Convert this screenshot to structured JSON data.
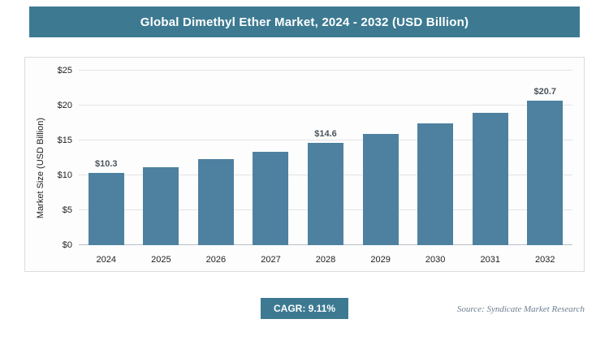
{
  "title": "Global Dimethyl Ether Market, 2024 - 2032 (USD Billion)",
  "chart_data": {
    "type": "bar",
    "title": "Global Dimethyl Ether Market, 2024 - 2032 (USD Billion)",
    "categories": [
      "2024",
      "2025",
      "2026",
      "2027",
      "2028",
      "2029",
      "2030",
      "2031",
      "2032"
    ],
    "values": [
      10.3,
      11.2,
      12.3,
      13.4,
      14.6,
      15.9,
      17.4,
      19.0,
      20.7
    ],
    "data_labels": [
      "$10.3",
      null,
      null,
      null,
      "$14.6",
      null,
      null,
      null,
      "$20.7"
    ],
    "xlabel": "",
    "ylabel": "Market Size (USD Billion)",
    "ylim": [
      0,
      25
    ],
    "yticks": [
      0,
      5,
      10,
      15,
      20,
      25
    ],
    "ytick_prefix": "$",
    "grid": true,
    "legend": false
  },
  "footer": {
    "cagr_label": "CAGR: 9.11%",
    "source": "Source: Syndicate Market Research"
  },
  "colors": {
    "bar": "#4e81a0",
    "header_bg": "#3d7a92",
    "badge_bg": "#3d7a92",
    "grid": "#e3e3e3",
    "source_text": "#6c7f90"
  }
}
